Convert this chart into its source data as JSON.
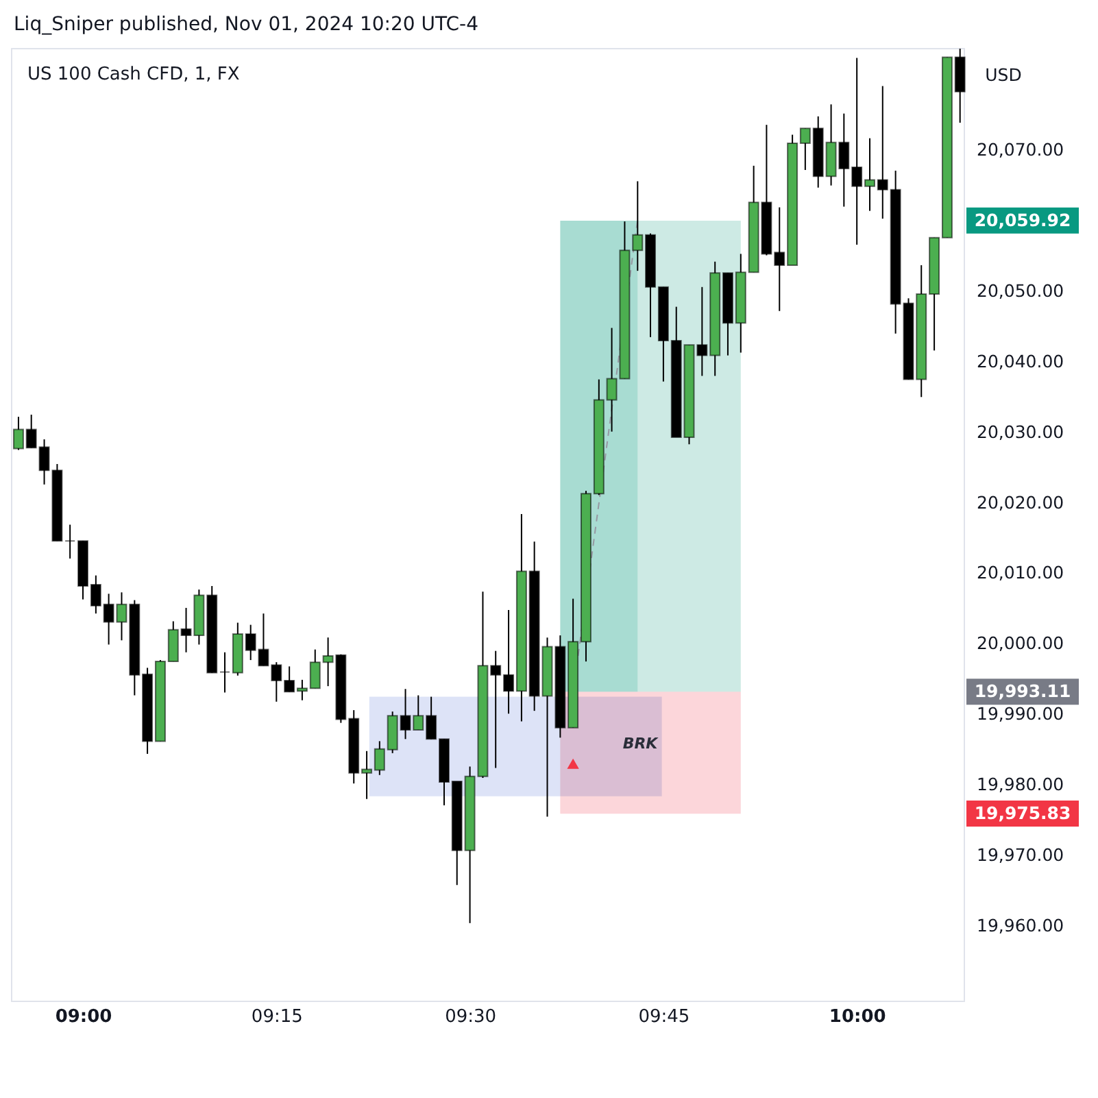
{
  "chart_data": {
    "type": "candlestick",
    "title": "Liq_Sniper published, Nov 01, 2024 10:20 UTC-4",
    "subtitle": "US 100 Cash CFD, 1, FX",
    "x": [
      8.9167,
      8.9333,
      8.95,
      8.9667,
      8.9833,
      9,
      9.0167,
      9.0333,
      9.05,
      9.0667,
      9.0833,
      9.1,
      9.1167,
      9.1333,
      9.15,
      9.1667,
      9.1833,
      9.2,
      9.2167,
      9.2333,
      9.25,
      9.2667,
      9.2833,
      9.3,
      9.3167,
      9.3333,
      9.35,
      9.3667,
      9.3833,
      9.4,
      9.4167,
      9.4333,
      9.45,
      9.4667,
      9.4833,
      9.5,
      9.5167,
      9.5333,
      9.55,
      9.5667,
      9.5833,
      9.6,
      9.6167,
      9.6333,
      9.65,
      9.6667,
      9.6833,
      9.7,
      9.7167,
      9.7333,
      9.75,
      9.7667,
      9.7833,
      9.8,
      9.8167,
      9.8333,
      9.85,
      9.8667,
      9.8833,
      9.9,
      9.9167,
      9.9333,
      9.95,
      9.9667,
      9.9833,
      10,
      10.0167,
      10.0333,
      10.05,
      10.0667,
      10.0833,
      10.1,
      10.1167,
      10.1333
    ],
    "ohlc": [
      [
        20027.6,
        20032.1,
        20027.4,
        20030.3
      ],
      [
        20030.3,
        20032.4,
        20027.7,
        20027.7
      ],
      [
        20027.8,
        20028.9,
        20022.5,
        20024.5
      ],
      [
        20024.5,
        20025.4,
        20014.5,
        20014.5
      ],
      [
        20014.5,
        20016.8,
        20012.0,
        20014.5
      ],
      [
        20014.5,
        20014.5,
        20006.2,
        20008.1
      ],
      [
        20008.3,
        20009.6,
        20004.2,
        20005.3
      ],
      [
        20005.5,
        20007.0,
        19999.8,
        20003.0
      ],
      [
        20003.0,
        20007.2,
        20000.4,
        20005.5
      ],
      [
        20005.5,
        20006.1,
        19992.6,
        19995.5
      ],
      [
        19995.6,
        19996.5,
        19984.3,
        19986.1
      ],
      [
        19986.1,
        19997.6,
        19986.1,
        19997.4
      ],
      [
        19997.4,
        20003.1,
        19997.4,
        20001.9
      ],
      [
        20002.0,
        20005.0,
        19998.7,
        20001.1
      ],
      [
        20001.1,
        20007.6,
        19999.8,
        20006.8
      ],
      [
        20006.8,
        20008.1,
        19995.8,
        19995.8
      ],
      [
        19995.9,
        19998.7,
        19993.0,
        19995.9
      ],
      [
        19995.8,
        20002.9,
        19995.4,
        20001.3
      ],
      [
        20001.3,
        20002.6,
        19997.6,
        19999.0
      ],
      [
        19999.1,
        20004.2,
        19996.8,
        19996.8
      ],
      [
        19996.9,
        19997.3,
        19991.7,
        19994.7
      ],
      [
        19994.7,
        19996.7,
        19993.1,
        19993.1
      ],
      [
        19993.2,
        19994.8,
        19991.9,
        19993.6
      ],
      [
        19993.6,
        19999.1,
        19993.6,
        19997.3
      ],
      [
        19997.3,
        20000.8,
        19993.9,
        19998.2
      ],
      [
        19998.3,
        19998.4,
        19988.7,
        19989.2
      ],
      [
        19989.3,
        19990.5,
        19980.1,
        19981.6
      ],
      [
        19981.6,
        19984.7,
        19977.9,
        19982.1
      ],
      [
        19982.0,
        19986.1,
        19981.3,
        19985.0
      ],
      [
        19984.9,
        19990.3,
        19984.4,
        19989.7
      ],
      [
        19989.7,
        19993.5,
        19986.4,
        19987.7
      ],
      [
        19987.7,
        19992.6,
        19987.7,
        19989.7
      ],
      [
        19989.7,
        19992.4,
        19986.4,
        19986.4
      ],
      [
        19986.4,
        19986.4,
        19977.0,
        19980.3
      ],
      [
        19980.4,
        19980.4,
        19965.7,
        19970.6
      ],
      [
        19970.6,
        19982.5,
        19960.3,
        19981.1
      ],
      [
        19981.1,
        20007.3,
        19980.9,
        19996.8
      ],
      [
        19996.8,
        19998.9,
        19982.3,
        19995.5
      ],
      [
        19995.5,
        20004.7,
        19990.0,
        19993.2
      ],
      [
        19993.2,
        20018.3,
        19988.9,
        20010.2
      ],
      [
        20010.2,
        20014.4,
        19990.4,
        19992.5
      ],
      [
        19992.5,
        20000.8,
        19975.4,
        19999.5
      ],
      [
        19999.5,
        20001.1,
        19986.6,
        19988.0
      ],
      [
        19988.0,
        20006.3,
        19988.0,
        20000.2
      ],
      [
        20000.2,
        20021.6,
        19997.4,
        20021.2
      ],
      [
        20021.2,
        20037.4,
        20021.0,
        20034.5
      ],
      [
        20034.5,
        20044.7,
        20030.0,
        20037.5
      ],
      [
        20037.5,
        20059.8,
        20037.5,
        20055.7
      ],
      [
        20055.7,
        20065.5,
        20052.8,
        20057.9
      ],
      [
        20057.9,
        20058.1,
        20043.4,
        20050.5
      ],
      [
        20050.5,
        20050.5,
        20037.1,
        20042.9
      ],
      [
        20042.9,
        20047.7,
        20029.2,
        20029.2
      ],
      [
        20029.2,
        20042.3,
        20028.2,
        20042.3
      ],
      [
        20042.3,
        20050.5,
        20037.9,
        20040.8
      ],
      [
        20040.8,
        20054.1,
        20037.9,
        20052.5
      ],
      [
        20052.5,
        20052.5,
        20040.8,
        20045.4
      ],
      [
        20045.4,
        20055.2,
        20041.2,
        20052.6
      ],
      [
        20052.6,
        20067.7,
        20052.6,
        20062.5
      ],
      [
        20062.5,
        20073.5,
        20055.0,
        20055.2
      ],
      [
        20055.4,
        20061.8,
        20047.1,
        20053.6
      ],
      [
        20053.6,
        20072.1,
        20053.6,
        20070.9
      ],
      [
        20070.9,
        20073.0,
        20067.1,
        20073.0
      ],
      [
        20073.0,
        20074.7,
        20064.6,
        20066.2
      ],
      [
        20066.2,
        20076.4,
        20064.9,
        20071.0
      ],
      [
        20071.0,
        20075.1,
        20061.9,
        20067.3
      ],
      [
        20067.5,
        20083.0,
        20056.5,
        20064.8
      ],
      [
        20064.8,
        20071.6,
        20061.3,
        20065.7
      ],
      [
        20065.7,
        20079.0,
        20060.2,
        20064.3
      ],
      [
        20064.3,
        20067.0,
        20043.9,
        20048.1
      ],
      [
        20048.2,
        20048.9,
        20037.4,
        20037.4
      ],
      [
        20037.4,
        20053.6,
        20034.9,
        20049.5
      ],
      [
        20049.5,
        20057.5,
        20041.5,
        20057.5
      ],
      [
        20057.5,
        20083.1,
        20057.5,
        20083.1
      ],
      [
        20083.1,
        20084.3,
        20073.8,
        20078.2
      ]
    ],
    "colors": [
      "#4caf50",
      "#000000",
      "#000000",
      "#000000",
      "#000000",
      "#000000",
      "#000000",
      "#000000",
      "#4caf50",
      "#000000",
      "#000000",
      "#4caf50",
      "#4caf50",
      "#000000",
      "#4caf50",
      "#000000",
      "#000000",
      "#4caf50",
      "#000000",
      "#000000",
      "#000000",
      "#000000",
      "#4caf50",
      "#4caf50",
      "#4caf50",
      "#000000",
      "#000000",
      "#4caf50",
      "#4caf50",
      "#4caf50",
      "#000000",
      "#4caf50",
      "#000000",
      "#000000",
      "#000000",
      "#4caf50",
      "#4caf50",
      "#000000",
      "#000000",
      "#4caf50",
      "#000000",
      "#4caf50",
      "#000000",
      "#4caf50",
      "#4caf50",
      "#4caf50",
      "#4caf50",
      "#4caf50",
      "#4caf50",
      "#000000",
      "#000000",
      "#000000",
      "#4caf50",
      "#000000",
      "#4caf50",
      "#000000",
      "#4caf50",
      "#4caf50",
      "#000000",
      "#000000",
      "#4caf50",
      "#4caf50",
      "#000000",
      "#4caf50",
      "#000000",
      "#000000",
      "#4caf50",
      "#000000",
      "#000000",
      "#000000",
      "#4caf50",
      "#4caf50",
      "#4caf50",
      "#000000"
    ],
    "series": [
      {
        "type": "line",
        "x": [
          9.6167,
          9.85
        ],
        "values": [
          null,
          null
        ],
        "lower": [
          19975.8,
          19975.8
        ],
        "upper": [
          19993.1,
          19993.1
        ],
        "color": "#fcd6da"
      },
      {
        "type": "line",
        "x": [
          9.37,
          9.748
        ],
        "values": [
          null,
          null
        ],
        "lower": [
          19978.3,
          19978.3
        ],
        "upper": [
          19992.4,
          19992.4
        ],
        "color": "#dde3f7"
      },
      {
        "type": "line",
        "x": [
          9.6167,
          9.7167
        ],
        "values": [
          null,
          null
        ],
        "lower": [
          19993.1,
          19993.1
        ],
        "upper": [
          20059.9,
          20059.9
        ],
        "color": "#a8dcd2"
      },
      {
        "type": "line",
        "x": [
          9.7167,
          9.85
        ],
        "values": [
          null,
          null
        ],
        "lower": [
          19993.1,
          19993.1
        ],
        "upper": [
          20059.9,
          20059.9
        ],
        "color": "#cdeae4"
      },
      {
        "type": "line",
        "x": [
          9.6333,
          9.7167
        ],
        "values": [
          19993,
          20060
        ],
        "color": "#9598a1",
        "line_style": "dashed"
      },
      {
        "type": "scatter",
        "x": [
          9.6333
        ],
        "values": [
          19982.9
        ],
        "color": "#f23645",
        "marker": "triangle"
      }
    ],
    "ref_lines": [
      {
        "axis": "y",
        "value": 20059.92,
        "label": "20,059.92",
        "color": "#089981"
      },
      {
        "axis": "y",
        "value": 19993.11,
        "label": "19,993.11",
        "color": "#787b86"
      },
      {
        "axis": "y",
        "value": 19975.83,
        "label": "19,975.83",
        "color": "#f23645"
      }
    ],
    "annotations": [
      "USD",
      "BRK"
    ],
    "xlim": [
      8.907,
      10.138
    ],
    "ylim": [
      19949.3,
      20084.4
    ],
    "xticks": [
      {
        "value": 9,
        "label": "09:00"
      },
      {
        "value": 9.25,
        "label": "09:15"
      },
      {
        "value": 9.5,
        "label": "09:30"
      },
      {
        "value": 9.75,
        "label": "09:45"
      },
      {
        "value": 10,
        "label": "10:00"
      }
    ],
    "yticks": [
      {
        "value": 19960,
        "label": "19,960.00"
      },
      {
        "value": 19970,
        "label": "19,970.00"
      },
      {
        "value": 19980,
        "label": "19,980.00"
      },
      {
        "value": 19990,
        "label": "19,990.00"
      },
      {
        "value": 20000,
        "label": "20,000.00"
      },
      {
        "value": 20010,
        "label": "20,010.00"
      },
      {
        "value": 20020,
        "label": "20,020.00"
      },
      {
        "value": 20030,
        "label": "20,030.00"
      },
      {
        "value": 20040,
        "label": "20,040.00"
      },
      {
        "value": 20050,
        "label": "20,050.00"
      },
      {
        "value": 20070,
        "label": "20,070.00"
      }
    ]
  }
}
